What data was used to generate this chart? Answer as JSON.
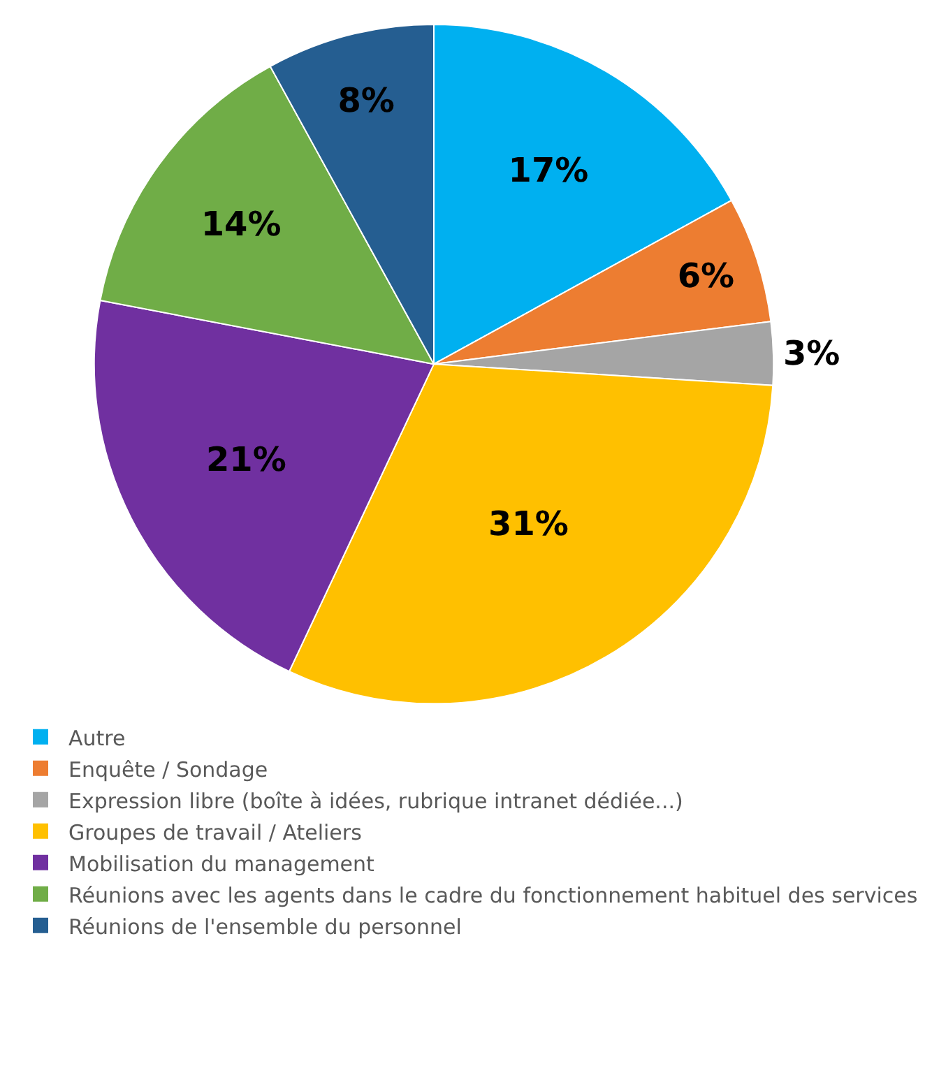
{
  "chart_data": {
    "type": "pie",
    "categories": [
      "Autre",
      "Enquête / Sondage",
      "Expression libre (boîte à idées, rubrique intranet dédiée...)",
      "Groupes de travail / Ateliers",
      "Mobilisation du management",
      "Réunions avec les agents dans le cadre du fonctionnement habituel des services",
      "Réunions de l'ensemble du personnel"
    ],
    "values": [
      17,
      6,
      3,
      31,
      21,
      14,
      8
    ],
    "colors": [
      "#00b0f0",
      "#ed7d31",
      "#a5a5a5",
      "#ffc000",
      "#7030a0",
      "#70ad47",
      "#255e91"
    ],
    "value_labels": [
      "17%",
      "6%",
      "3%",
      "31%",
      "21%",
      "14%",
      "8%"
    ],
    "legend": "bottom"
  }
}
